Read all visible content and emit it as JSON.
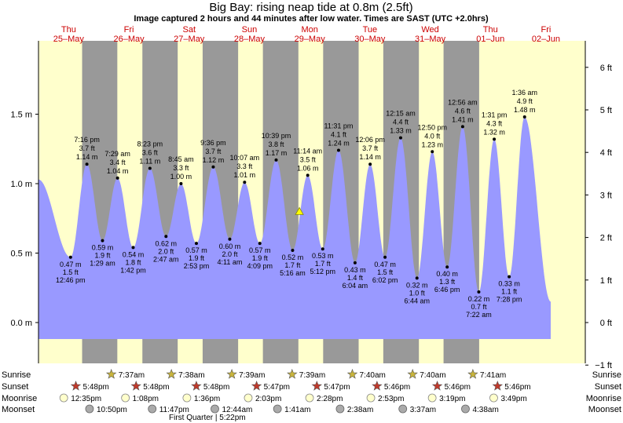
{
  "title": "Big Bay: rising  neap tide at 0.8m (2.5ft)",
  "subtitle": "Image captured 2 hours and 44 minutes after low water. Times are SAST (UTC +2.0hrs)",
  "colors": {
    "day_bg": "#ffffcc",
    "night_bg": "#999999",
    "tide_fill": "#9999ff",
    "day_label": "#cc0000",
    "sun_icon": "#c8b43c",
    "sunset_icon": "#c0392b",
    "moon_light": "#ffffcc",
    "moon_dark": "#aaaaaa"
  },
  "days": [
    {
      "name": "Thu",
      "date": "25–May"
    },
    {
      "name": "Fri",
      "date": "26–May"
    },
    {
      "name": "Sat",
      "date": "27–May"
    },
    {
      "name": "Sun",
      "date": "28–May"
    },
    {
      "name": "Mon",
      "date": "29–May"
    },
    {
      "name": "Tue",
      "date": "30–May"
    },
    {
      "name": "Wed",
      "date": "31–May"
    },
    {
      "name": "Thu",
      "date": "01–Jun"
    },
    {
      "name": "Fri",
      "date": "02–Jun"
    }
  ],
  "left_axis": {
    "ticks": [
      "0.0 m",
      "0.5 m",
      "1.0 m",
      "1.5 m"
    ],
    "values": [
      0,
      0.5,
      1.0,
      1.5
    ]
  },
  "right_axis": {
    "ticks": [
      "−1 ft",
      "0 ft",
      "1 ft",
      "2 ft",
      "3 ft",
      "4 ft",
      "5 ft",
      "6 ft"
    ],
    "values": [
      -1,
      0,
      1,
      2,
      3,
      4,
      5,
      6
    ]
  },
  "chart_data": {
    "type": "area",
    "x_unit": "days from 25-May 00:00 (SAST)",
    "ylabel": "",
    "ylim_m": [
      -0.3,
      1.95
    ],
    "points": [
      {
        "x": 0.532,
        "m": 0.47,
        "ft": "1.5 ft",
        "time": "12:46 pm",
        "hl": "low"
      },
      {
        "x": 0.803,
        "m": 1.14,
        "ft": "3.7 ft",
        "time": "7:16 pm",
        "hl": "high"
      },
      {
        "x": 1.062,
        "m": 0.59,
        "ft": "1.9 ft",
        "time": "1:29 am",
        "hl": "low"
      },
      {
        "x": 1.312,
        "m": 1.04,
        "ft": "3.4 ft",
        "time": "7:29 am",
        "hl": "high"
      },
      {
        "x": 1.571,
        "m": 0.54,
        "ft": "1.8 ft",
        "time": "1:42 pm",
        "hl": "low"
      },
      {
        "x": 1.849,
        "m": 1.11,
        "ft": "3.6 ft",
        "time": "8:23 pm",
        "hl": "high"
      },
      {
        "x": 2.116,
        "m": 0.62,
        "ft": "2.0 ft",
        "time": "2:47 am",
        "hl": "low"
      },
      {
        "x": 2.365,
        "m": 1.0,
        "ft": "3.3 ft",
        "time": "8:45 am",
        "hl": "high"
      },
      {
        "x": 2.62,
        "m": 0.57,
        "ft": "1.9 ft",
        "time": "2:53 pm",
        "hl": "low"
      },
      {
        "x": 2.9,
        "m": 1.12,
        "ft": "3.7 ft",
        "time": "9:36 pm",
        "hl": "high"
      },
      {
        "x": 3.174,
        "m": 0.6,
        "ft": "2.0 ft",
        "time": "4:11 am",
        "hl": "low"
      },
      {
        "x": 3.42,
        "m": 1.01,
        "ft": "3.3 ft",
        "time": "10:07 am",
        "hl": "high"
      },
      {
        "x": 3.673,
        "m": 0.57,
        "ft": "1.9 ft",
        "time": "4:09 pm",
        "hl": "low"
      },
      {
        "x": 3.944,
        "m": 1.17,
        "ft": "3.8 ft",
        "time": "10:39 pm",
        "hl": "high"
      },
      {
        "x": 4.217,
        "m": 0.52,
        "ft": "1.7 ft",
        "time": "5:16 am",
        "hl": "low"
      },
      {
        "x": 4.468,
        "m": 1.06,
        "ft": "3.5 ft",
        "time": "11:14 am",
        "hl": "high"
      },
      {
        "x": 4.717,
        "m": 0.53,
        "ft": "1.7 ft",
        "time": "5:12 pm",
        "hl": "low"
      },
      {
        "x": 4.98,
        "m": 1.24,
        "ft": "4.1 ft",
        "time": "11:31 pm",
        "hl": "high"
      },
      {
        "x": 5.253,
        "m": 0.43,
        "ft": "1.4 ft",
        "time": "6:04 am",
        "hl": "low"
      },
      {
        "x": 5.504,
        "m": 1.14,
        "ft": "3.7 ft",
        "time": "12:06 pm",
        "hl": "high"
      },
      {
        "x": 5.751,
        "m": 0.47,
        "ft": "1.5 ft",
        "time": "6:02 pm",
        "hl": "low"
      },
      {
        "x": 6.01,
        "m": 1.33,
        "ft": "4.4 ft",
        "time": "12:15 am",
        "hl": "high"
      },
      {
        "x": 6.281,
        "m": 0.32,
        "ft": "1.0 ft",
        "time": "6:44 am",
        "hl": "low"
      },
      {
        "x": 6.535,
        "m": 1.23,
        "ft": "4.0 ft",
        "time": "12:50 pm",
        "hl": "high"
      },
      {
        "x": 6.782,
        "m": 0.4,
        "ft": "1.3 ft",
        "time": "6:46 pm",
        "hl": "low"
      },
      {
        "x": 7.039,
        "m": 1.41,
        "ft": "4.6 ft",
        "time": "12:56 am",
        "hl": "high"
      },
      {
        "x": 7.307,
        "m": 0.22,
        "ft": "0.7 ft",
        "time": "7:22 am",
        "hl": "low"
      },
      {
        "x": 7.563,
        "m": 1.32,
        "ft": "4.3 ft",
        "time": "1:31 pm",
        "hl": "high"
      },
      {
        "x": 7.811,
        "m": 0.33,
        "ft": "1.1 ft",
        "time": "7:28 pm",
        "hl": "low"
      },
      {
        "x": 8.067,
        "m": 1.48,
        "ft": "4.9 ft",
        "time": "1:36 am",
        "hl": "high"
      }
    ],
    "start": {
      "x": 0.0,
      "m": 1.03
    },
    "end": {
      "x": 8.5,
      "m": 0.15
    },
    "current": {
      "x": 4.33,
      "m": 0.8
    }
  },
  "nights": [
    {
      "start": 0.724,
      "end": 1.308
    },
    {
      "start": 1.724,
      "end": 2.31
    },
    {
      "start": 2.724,
      "end": 3.313
    },
    {
      "start": 3.724,
      "end": 4.313
    },
    {
      "start": 4.724,
      "end": 5.313
    },
    {
      "start": 5.722,
      "end": 6.313
    },
    {
      "start": 6.722,
      "end": 7.313
    }
  ],
  "row_labels": [
    "Sunrise",
    "Sunset",
    "Moonrise",
    "Moonset"
  ],
  "sunrise": [
    {
      "x": 1.313,
      "text": "7:37am"
    },
    {
      "x": 2.31,
      "text": "7:38am"
    },
    {
      "x": 3.313,
      "text": "7:39am"
    },
    {
      "x": 4.313,
      "text": "7:39am"
    },
    {
      "x": 5.313,
      "text": "7:40am"
    },
    {
      "x": 6.313,
      "text": "7:40am"
    },
    {
      "x": 7.313,
      "text": "7:41am"
    }
  ],
  "sunset": [
    {
      "x": 0.724,
      "text": "5:48pm"
    },
    {
      "x": 1.724,
      "text": "5:48pm"
    },
    {
      "x": 2.724,
      "text": "5:48pm"
    },
    {
      "x": 3.724,
      "text": "5:47pm"
    },
    {
      "x": 4.724,
      "text": "5:47pm"
    },
    {
      "x": 5.722,
      "text": "5:46pm"
    },
    {
      "x": 6.722,
      "text": "5:46pm"
    },
    {
      "x": 7.722,
      "text": "5:46pm"
    }
  ],
  "moonrise": [
    {
      "x": 0.524,
      "text": "12:35pm"
    },
    {
      "x": 1.547,
      "text": "1:08pm"
    },
    {
      "x": 2.567,
      "text": "1:36pm"
    },
    {
      "x": 3.585,
      "text": "2:03pm"
    },
    {
      "x": 4.603,
      "text": "2:28pm"
    },
    {
      "x": 5.62,
      "text": "2:53pm"
    },
    {
      "x": 6.638,
      "text": "3:19pm"
    },
    {
      "x": 7.659,
      "text": "3:49pm"
    }
  ],
  "moonset": [
    {
      "x": 0.951,
      "text": "10:50pm"
    },
    {
      "x": 1.991,
      "text": "11:47pm"
    },
    {
      "x": 3.031,
      "text": "12:44am"
    },
    {
      "x": 4.07,
      "text": "1:41am"
    },
    {
      "x": 5.11,
      "text": "2:38am"
    },
    {
      "x": 6.15,
      "text": "3:37am"
    },
    {
      "x": 7.19,
      "text": "4:38am"
    }
  ],
  "moon_phase": "First Quarter | 5:22pm"
}
